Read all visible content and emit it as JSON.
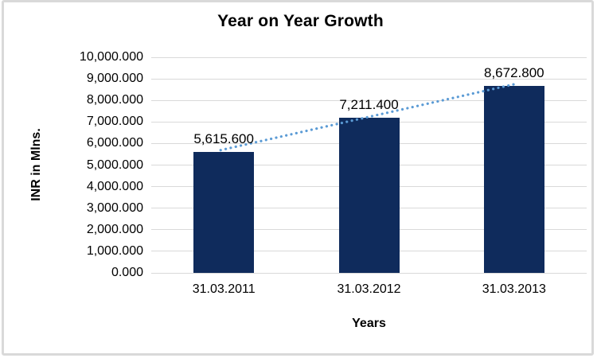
{
  "frame": {
    "border_color": "#d9d9d9",
    "background_color": "#ffffff"
  },
  "chart_data": {
    "type": "bar",
    "title": "Year on Year Growth",
    "categories": [
      "31.03.2011",
      "31.03.2012",
      "31.03.2013"
    ],
    "values": [
      5615.6,
      7211.4,
      8672.8
    ],
    "data_labels": [
      "5,615.600",
      "7,211.400",
      "8,672.800"
    ],
    "xlabel": "Years",
    "ylabel": "INR in Mlns.",
    "ylim": [
      0,
      10000
    ],
    "ytick_step": 1000,
    "ytick_labels_top_to_bottom": [
      "10,000.000",
      "9,000.000",
      "8,000.000",
      "7,000.000",
      "6,000.000",
      "5,000.000",
      "4,000.000",
      "3,000.000",
      "2,000.000",
      "1,000.000",
      "0.000"
    ],
    "grid": true,
    "legend_position": "none",
    "bar_color": "#0f2b5c",
    "gridline_color": "#d9d9d9",
    "text_color": "#000000",
    "trendline": {
      "type": "linear",
      "style": "dotted",
      "color": "#5b9bd5"
    }
  }
}
